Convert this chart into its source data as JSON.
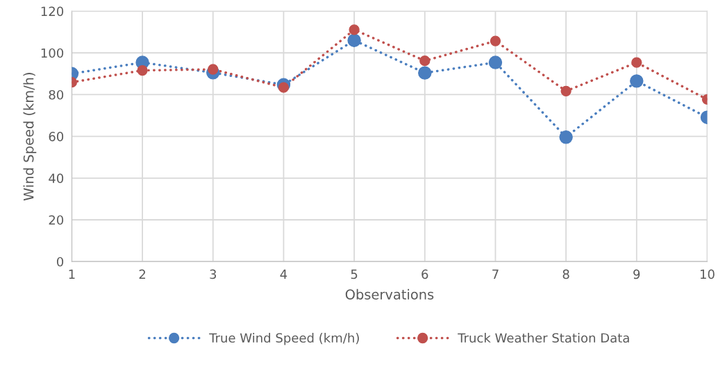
{
  "chart_data": {
    "type": "line",
    "xlabel": "Observations",
    "ylabel": "Wind Speed (km/h)",
    "x": [
      1,
      2,
      3,
      4,
      5,
      6,
      7,
      8,
      9,
      10
    ],
    "series": [
      {
        "name": "True Wind Speed (km/h)",
        "color": "#4a7ebf",
        "values": [
          90.0,
          95.4,
          90.5,
          84.7,
          106.0,
          90.4,
          95.4,
          59.6,
          86.5,
          69.1
        ]
      },
      {
        "name": "Truck Weather Station Data",
        "color": "#c0504d",
        "values": [
          85.9,
          91.6,
          92.1,
          83.4,
          111.1,
          96.2,
          105.7,
          81.7,
          95.4,
          77.7
        ]
      }
    ],
    "xlim": [
      1,
      10
    ],
    "xticks": [
      1,
      2,
      3,
      4,
      5,
      6,
      7,
      8,
      9,
      10
    ],
    "ylim": [
      0,
      120
    ],
    "yticks": [
      0,
      20,
      40,
      60,
      80,
      100,
      120
    ],
    "grid": true,
    "legend": "bottom",
    "marker": "circle",
    "line_style": "dotted"
  }
}
